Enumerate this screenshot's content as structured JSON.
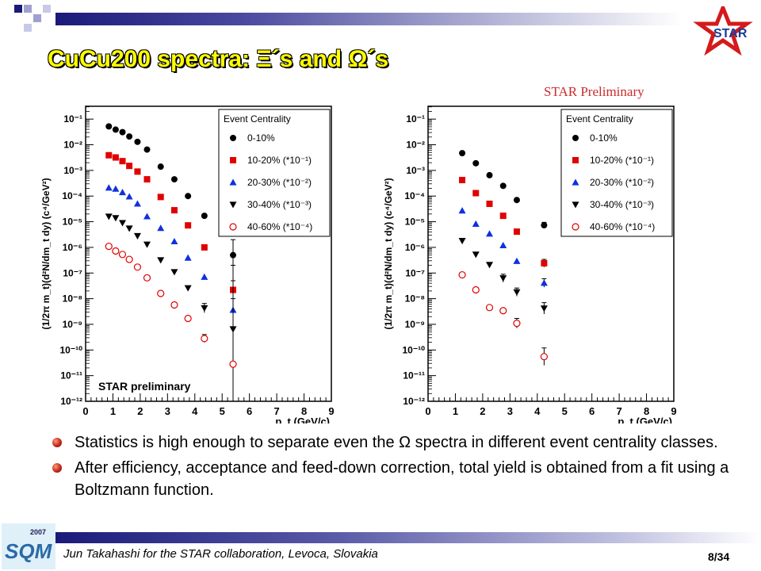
{
  "slide": {
    "title": "CuCu200 spectra: Ξ´s and Ω´s",
    "star_preliminary_label": "STAR Preliminary",
    "bullets": [
      "Statistics is high enough to separate even the Ω spectra in different event centrality classes.",
      "After efficiency, acceptance and feed-down correction, total yield is obtained from a fit using a Boltzmann function."
    ],
    "footer": "Jun Takahashi for the STAR collaboration, Levoca, Slovakia",
    "page_number": "8/34",
    "logo_text": "STAR",
    "sqm_logo_year": "2007",
    "sqm_logo_text": "SQM"
  },
  "chart_data": [
    {
      "type": "scatter",
      "ylabel": "(1/2π m_t)(d²N/dm_t dy) (c⁴/GeV²)",
      "xlabel": "p_t (GeV/c)",
      "xlim": [
        0,
        9
      ],
      "ylim_log10": [
        -12,
        -0.5
      ],
      "y_scale": "log",
      "x_ticks": [
        0,
        1,
        2,
        3,
        4,
        5,
        6,
        7,
        8,
        9
      ],
      "y_tick_exponents": [
        -1,
        -2,
        -3,
        -4,
        -5,
        -6,
        -7,
        -8,
        -9,
        -10,
        -11,
        -12
      ],
      "legend_title": "Event Centrality",
      "legend_position": "top-right",
      "annotation": "STAR preliminary",
      "series": [
        {
          "name": "0-10%",
          "marker": "filled-circle",
          "color": "#000000",
          "points": [
            [
              0.85,
              0.052
            ],
            [
              1.1,
              0.039
            ],
            [
              1.35,
              0.031
            ],
            [
              1.6,
              0.021
            ],
            [
              1.9,
              0.013
            ],
            [
              2.25,
              0.0065
            ],
            [
              2.75,
              0.0014
            ],
            [
              3.25,
              0.00045
            ],
            [
              3.75,
              0.0001
            ],
            [
              4.35,
              1.7e-05
            ],
            [
              5.4,
              5e-07
            ]
          ],
          "error_hi": [
            null,
            null,
            null,
            null,
            null,
            null,
            null,
            null,
            null,
            null,
            2e-06
          ]
        },
        {
          "name": "10-20% (*10⁻¹)",
          "marker": "filled-square",
          "color": "#e00000",
          "points": [
            [
              0.85,
              0.0039
            ],
            [
              1.1,
              0.0032
            ],
            [
              1.35,
              0.0023
            ],
            [
              1.6,
              0.0015
            ],
            [
              1.9,
              0.0009
            ],
            [
              2.25,
              0.00045
            ],
            [
              2.75,
              9.2e-05
            ],
            [
              3.25,
              2.8e-05
            ],
            [
              3.75,
              7.2e-06
            ],
            [
              4.35,
              1e-06
            ],
            [
              5.4,
              2.2e-08
            ]
          ],
          "error_hi": [
            null,
            null,
            null,
            null,
            null,
            null,
            null,
            null,
            null,
            null,
            2e-07
          ]
        },
        {
          "name": "20-30% (*10⁻²)",
          "marker": "filled-triangle-up",
          "color": "#1030e0",
          "points": [
            [
              0.85,
              0.00021
            ],
            [
              1.1,
              0.00019
            ],
            [
              1.35,
              0.00014
            ],
            [
              1.6,
              9.5e-05
            ],
            [
              1.9,
              5e-05
            ],
            [
              2.25,
              1.6e-05
            ],
            [
              2.75,
              5.6e-06
            ],
            [
              3.25,
              1.7e-06
            ],
            [
              3.75,
              3.9e-07
            ],
            [
              4.35,
              7e-08
            ],
            [
              5.4,
              3.6e-09
            ]
          ],
          "error_hi": [
            null,
            null,
            null,
            null,
            null,
            null,
            null,
            null,
            null,
            null,
            5e-08
          ]
        },
        {
          "name": "30-40% (*10⁻³)",
          "marker": "filled-triangle-down",
          "color": "#000000",
          "points": [
            [
              0.85,
              1.6e-05
            ],
            [
              1.1,
              1.4e-05
            ],
            [
              1.35,
              9e-06
            ],
            [
              1.6,
              5.5e-06
            ],
            [
              1.9,
              2.8e-06
            ],
            [
              2.25,
              1.3e-06
            ],
            [
              2.75,
              3.2e-07
            ],
            [
              3.25,
              1.1e-07
            ],
            [
              3.75,
              2.6e-08
            ],
            [
              4.35,
              4.3e-09
            ],
            [
              5.4,
              6.5e-10
            ]
          ],
          "error_hi": [
            null,
            null,
            null,
            null,
            null,
            null,
            null,
            null,
            null,
            6.5e-09,
            1e-08
          ]
        },
        {
          "name": "40-60% (*10⁻⁴)",
          "marker": "open-circle",
          "color": "#e00000",
          "points": [
            [
              0.85,
              1.1e-06
            ],
            [
              1.1,
              7.2e-07
            ],
            [
              1.35,
              5.3e-07
            ],
            [
              1.6,
              3.4e-07
            ],
            [
              1.9,
              1.7e-07
            ],
            [
              2.25,
              6.5e-08
            ],
            [
              2.75,
              1.6e-08
            ],
            [
              3.25,
              5.7e-09
            ],
            [
              3.75,
              1.7e-09
            ],
            [
              4.35,
              2.8e-10
            ],
            [
              5.4,
              2.8e-11
            ]
          ],
          "error_hi": [
            null,
            null,
            null,
            null,
            null,
            null,
            null,
            null,
            null,
            4e-10,
            7e-10
          ]
        }
      ]
    },
    {
      "type": "scatter",
      "ylabel": "(1/2π m_t)(d²N/dm_t dy) (c⁴/GeV²)",
      "xlabel": "p_t (GeV/c)",
      "xlim": [
        0,
        9
      ],
      "ylim_log10": [
        -12,
        -0.5
      ],
      "y_scale": "log",
      "x_ticks": [
        0,
        1,
        2,
        3,
        4,
        5,
        6,
        7,
        8,
        9
      ],
      "y_tick_exponents": [
        -1,
        -2,
        -3,
        -4,
        -5,
        -6,
        -7,
        -8,
        -9,
        -10,
        -11,
        -12
      ],
      "legend_title": "Event Centrality",
      "legend_position": "top-right",
      "series": [
        {
          "name": "0-10%",
          "marker": "filled-circle",
          "color": "#000000",
          "points": [
            [
              1.25,
              0.0047
            ],
            [
              1.75,
              0.0019
            ],
            [
              2.25,
              0.00065
            ],
            [
              2.75,
              0.00025
            ],
            [
              3.25,
              7e-05
            ],
            [
              4.25,
              7.3e-06
            ]
          ],
          "error_hi": [
            null,
            null,
            null,
            null,
            null,
            9.5e-06
          ]
        },
        {
          "name": "10-20% (*10⁻¹)",
          "marker": "filled-square",
          "color": "#e00000",
          "points": [
            [
              1.25,
              0.00042
            ],
            [
              1.75,
              0.00013
            ],
            [
              2.25,
              5e-05
            ],
            [
              2.75,
              1.7e-05
            ],
            [
              3.25,
              4.1e-06
            ],
            [
              4.25,
              2.4e-07
            ]
          ],
          "error_hi": [
            null,
            null,
            null,
            null,
            null,
            3.4e-07
          ]
        },
        {
          "name": "20-30% (*10⁻²)",
          "marker": "filled-triangle-up",
          "color": "#1030e0",
          "points": [
            [
              1.25,
              2.7e-05
            ],
            [
              1.75,
              8.2e-06
            ],
            [
              2.25,
              3.4e-06
            ],
            [
              2.75,
              1.2e-06
            ],
            [
              3.25,
              2.9e-07
            ],
            [
              4.25,
              4.1e-08
            ]
          ],
          "error_hi": [
            null,
            null,
            null,
            null,
            null,
            6e-08
          ]
        },
        {
          "name": "30-40% (*10⁻³)",
          "marker": "filled-triangle-down",
          "color": "#000000",
          "points": [
            [
              1.25,
              1.8e-06
            ],
            [
              1.75,
              5.3e-07
            ],
            [
              2.25,
              2.1e-07
            ],
            [
              2.75,
              6.3e-08
            ],
            [
              3.25,
              1.8e-08
            ],
            [
              4.25,
              4.2e-09
            ]
          ],
          "error_hi": [
            null,
            null,
            null,
            9e-08,
            2.6e-08,
            7e-09
          ]
        },
        {
          "name": "40-60% (*10⁻⁴)",
          "marker": "open-circle",
          "color": "#e00000",
          "points": [
            [
              1.25,
              8.5e-08
            ],
            [
              1.75,
              2.2e-08
            ],
            [
              2.25,
              4.5e-09
            ],
            [
              2.75,
              3.4e-09
            ],
            [
              3.25,
              1.1e-09
            ],
            [
              4.25,
              5.5e-11
            ]
          ],
          "error_hi": [
            null,
            null,
            null,
            null,
            1.7e-09,
            1.2e-10
          ]
        }
      ]
    }
  ]
}
